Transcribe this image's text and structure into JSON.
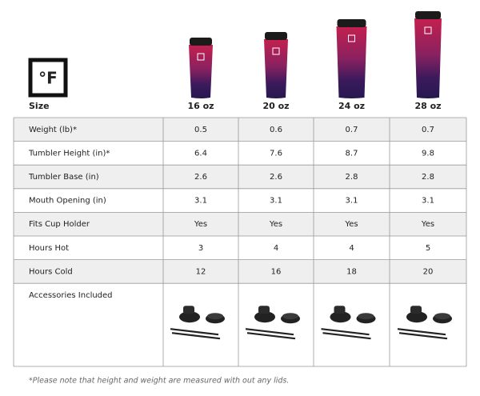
{
  "logo": "°F",
  "header": {
    "label": "Size",
    "columns": [
      "16 oz",
      "20 oz",
      "24 oz",
      "28 oz"
    ]
  },
  "table": {
    "rows": [
      {
        "label": "Weight (lb)*",
        "cells": [
          "0.5",
          "0.6",
          "0.7",
          "0.7"
        ]
      },
      {
        "label": "Tumbler Height (in)*",
        "cells": [
          "6.4",
          "7.6",
          "8.7",
          "9.8"
        ]
      },
      {
        "label": "Tumbler Base (in)",
        "cells": [
          "2.6",
          "2.6",
          "2.8",
          "2.8"
        ]
      },
      {
        "label": "Mouth Opening (in)",
        "cells": [
          "3.1",
          "3.1",
          "3.1",
          "3.1"
        ]
      },
      {
        "label": "Fits Cup Holder",
        "cells": [
          "Yes",
          "Yes",
          "Yes",
          "Yes"
        ]
      },
      {
        "label": "Hours Hot",
        "cells": [
          "3",
          "4",
          "4",
          "5"
        ]
      },
      {
        "label": "Hours Cold",
        "cells": [
          "12",
          "16",
          "18",
          "20"
        ]
      }
    ],
    "accessories_label": "Accessories Included"
  },
  "footnote": "*Please note that height and weight are measured with out any lids."
}
